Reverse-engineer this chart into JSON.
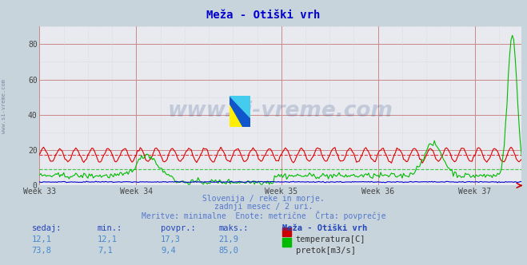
{
  "title": "Meža - Otiški vrh",
  "background_color": "#c8d4dc",
  "plot_bg_color": "#e8eaf0",
  "grid_color_major": "#cc8888",
  "grid_color_minor": "#cccccc",
  "xlabel": "",
  "ylabel": "",
  "xlim": [
    0,
    359
  ],
  "ylim": [
    0,
    90
  ],
  "yticks": [
    0,
    20,
    40,
    60,
    80
  ],
  "week_labels": [
    "Week 33",
    "Week 34",
    "Week 35",
    "Week 36",
    "Week 37"
  ],
  "week_tick_positions": [
    0,
    72,
    180,
    252,
    324
  ],
  "temp_color": "#dd0000",
  "flow_color": "#00bb00",
  "height_color": "#0000cc",
  "subtitle1": "Slovenija / reke in morje.",
  "subtitle2": "zadnji mesec / 2 uri.",
  "subtitle3": "Meritve: minimalne  Enote: metrične  Črta: povprečje",
  "footer_color": "#5577cc",
  "table_header_color": "#2244bb",
  "table_value_color": "#4488cc",
  "table_headers": [
    "sedaj:",
    "min.:",
    "povpr.:",
    "maks.:",
    "Meža - Otiški vrh"
  ],
  "row1": [
    "12,1",
    "12,1",
    "17,3",
    "21,9"
  ],
  "row2": [
    "73,8",
    "7,1",
    "9,4",
    "85,0"
  ],
  "label1": "temperatura[C]",
  "label2": "pretok[m3/s]",
  "watermark": "www.si-vreme.com",
  "watermark_color": "#1a3a7a",
  "temp_avg": 17.3,
  "flow_avg": 9.4,
  "n_points": 360
}
